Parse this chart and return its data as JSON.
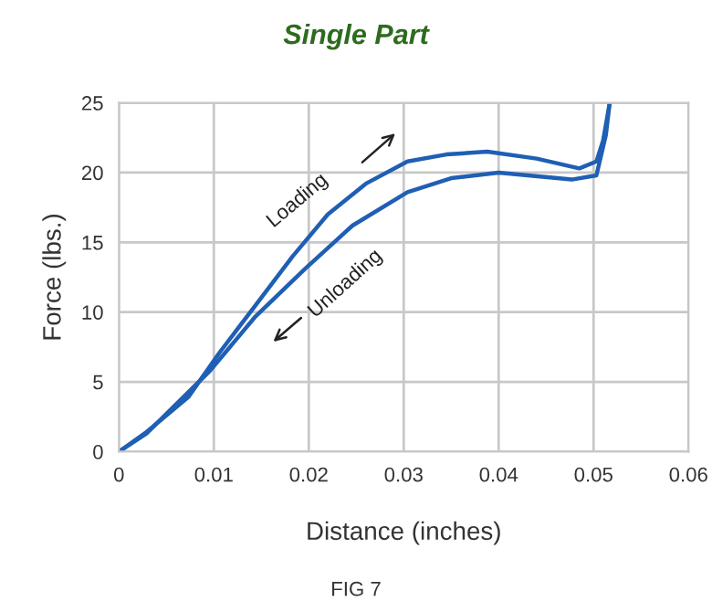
{
  "chart_data": {
    "type": "line",
    "title": "Single Part",
    "xlabel": "Distance (inches)",
    "ylabel": "Force (lbs.)",
    "xlim": [
      0,
      0.06
    ],
    "xticks": [
      0,
      0.01,
      0.02,
      0.03,
      0.04,
      0.05,
      0.06
    ],
    "ylim": [
      0,
      25
    ],
    "yticks": [
      0,
      5,
      10,
      15,
      20,
      25
    ],
    "grid": true,
    "marker": "none",
    "line_style": "solid",
    "series": [
      {
        "color": "#1f5fb4",
        "x": [
          0,
          0.0029,
          0.0073,
          0.0106,
          0.0144,
          0.0183,
          0.022,
          0.026,
          0.0304,
          0.0345,
          0.0388,
          0.044,
          0.0485,
          0.0503,
          0.051,
          0.0517
        ],
        "values": [
          0,
          1.4,
          3.9,
          7.1,
          10.5,
          14,
          17,
          19.2,
          20.8,
          21.3,
          21.5,
          21,
          20.3,
          20.8,
          22.3,
          25
        ]
      },
      {
        "color": "#1f5fb4",
        "x": [
          0,
          0.0029,
          0.0096,
          0.0144,
          0.0196,
          0.0246,
          0.0304,
          0.035,
          0.04,
          0.0477,
          0.0503,
          0.0513,
          0.0517
        ],
        "values": [
          0,
          1.3,
          5.8,
          9.7,
          13.1,
          16.2,
          18.6,
          19.6,
          20,
          19.5,
          19.8,
          22.7,
          25
        ]
      }
    ],
    "annotations": [
      {
        "text": "Loading",
        "x": 0.0215,
        "y": 16.5
      },
      {
        "text": "Unloading",
        "x": 0.0196,
        "y": 13.1
      },
      "FIG 7"
    ]
  }
}
